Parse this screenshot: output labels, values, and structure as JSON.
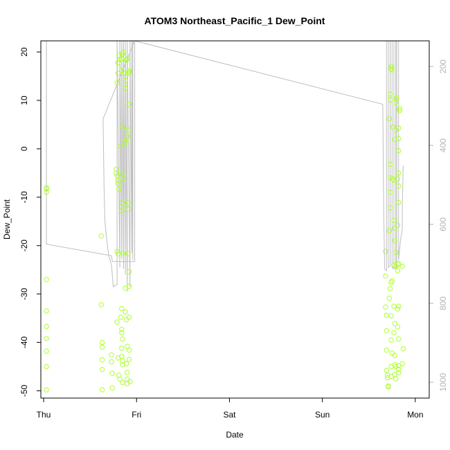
{
  "chart_data": {
    "type": "scatter",
    "title": "ATOM3 Northeast_Pacific_1 Dew_Point",
    "xlabel": "Date",
    "ylabel": "Dew_Point",
    "x_ticks": [
      "Thu",
      "Fri",
      "Sat",
      "Sun",
      "Mon"
    ],
    "xlim": [
      -0.03,
      4.15
    ],
    "ylim": [
      -51.5,
      22.3
    ],
    "y_ticks": [
      -50,
      -40,
      -30,
      -20,
      -10,
      0,
      10,
      20
    ],
    "right_axis": {
      "ticks": [
        200,
        400,
        600,
        800,
        1000
      ],
      "lim": [
        1040,
        135
      ],
      "color": "#b3b3b3"
    },
    "grid": false,
    "legend": "none",
    "colors": {
      "points": "#adff2f",
      "line": "#bebebe"
    },
    "series": [
      {
        "marker": "circle",
        "color": "#adff2f",
        "points": [
          [
            0.03,
            -8
          ],
          [
            0.03,
            -8.3
          ],
          [
            0.03,
            -9
          ],
          [
            0.03,
            -27
          ],
          [
            0.03,
            -33.5
          ],
          [
            0.03,
            -36.7
          ],
          [
            0.03,
            -39.2
          ],
          [
            0.03,
            -41.8
          ],
          [
            0.03,
            -45
          ],
          [
            0.03,
            -49.8
          ],
          [
            0.62,
            -18
          ],
          [
            0.62,
            -32.2
          ],
          [
            0.63,
            -40
          ],
          [
            0.63,
            -41
          ],
          [
            0.63,
            -43.6
          ],
          [
            0.63,
            -45.6
          ],
          [
            0.63,
            -49.8
          ],
          [
            0.73,
            -42.6
          ],
          [
            0.73,
            -44
          ],
          [
            0.74,
            -46.4
          ],
          [
            0.74,
            -49.4
          ],
          [
            0.78,
            -4.2
          ],
          [
            0.78,
            -5.1
          ],
          [
            0.79,
            -5.6
          ],
          [
            0.8,
            -6.5
          ],
          [
            0.8,
            -7.2
          ],
          [
            0.81,
            -8.3
          ],
          [
            0.79,
            -21.2
          ],
          [
            0.8,
            -21.7
          ],
          [
            0.79,
            -35.8
          ],
          [
            0.8,
            -43.2
          ],
          [
            0.81,
            -46.8
          ],
          [
            0.82,
            -47.6
          ],
          [
            0.79,
            13.6
          ],
          [
            0.8,
            15.6
          ],
          [
            0.8,
            17.8
          ],
          [
            0.81,
            19.3
          ],
          [
            0.82,
            18.4
          ],
          [
            0.83,
            -34.8
          ],
          [
            0.84,
            -33
          ],
          [
            0.84,
            -37.3
          ],
          [
            0.84,
            -38
          ],
          [
            0.85,
            -39.3
          ],
          [
            0.84,
            -41.2
          ],
          [
            0.84,
            -42.9
          ],
          [
            0.85,
            -43.8
          ],
          [
            0.85,
            -44.6
          ],
          [
            0.85,
            -48.3
          ],
          [
            0.85,
            -5.3
          ],
          [
            0.86,
            -6.2
          ],
          [
            0.84,
            -11.2
          ],
          [
            0.84,
            -12.8
          ],
          [
            0.85,
            -21.6
          ],
          [
            0.83,
            0.6
          ],
          [
            0.85,
            4.5
          ],
          [
            0.86,
            15.6
          ],
          [
            0.84,
            16.2
          ],
          [
            0.84,
            18.6
          ],
          [
            0.85,
            19.6
          ],
          [
            0.86,
            20
          ],
          [
            0.88,
            -11.4
          ],
          [
            0.88,
            -28.8
          ],
          [
            0.88,
            -33.7
          ],
          [
            0.89,
            -35.3
          ],
          [
            0.9,
            -40.8
          ],
          [
            0.89,
            -44.4
          ],
          [
            0.9,
            -46.2
          ],
          [
            0.9,
            -47.6
          ],
          [
            0.9,
            -48.5
          ],
          [
            0.88,
            12.5
          ],
          [
            0.88,
            14.1
          ],
          [
            0.89,
            18.3
          ],
          [
            0.9,
            18.6
          ],
          [
            0.88,
            1.3
          ],
          [
            0.89,
            1.8
          ],
          [
            0.9,
            2.6
          ],
          [
            0.91,
            -21.7
          ],
          [
            0.92,
            -25.4
          ],
          [
            0.92,
            -28.4
          ],
          [
            0.92,
            -34.8
          ],
          [
            0.92,
            -41.6
          ],
          [
            0.92,
            -43.5
          ],
          [
            0.93,
            -48.1
          ],
          [
            0.91,
            -11.2
          ],
          [
            0.92,
            -12.5
          ],
          [
            0.91,
            3.9
          ],
          [
            0.92,
            9.2
          ],
          [
            0.91,
            15.6
          ],
          [
            0.92,
            16.1
          ],
          [
            0.92,
            15.8
          ],
          [
            3.68,
            -21.2
          ],
          [
            3.68,
            -26.3
          ],
          [
            3.68,
            -32.7
          ],
          [
            3.69,
            -34.4
          ],
          [
            3.69,
            -37.6
          ],
          [
            3.69,
            -41.6
          ],
          [
            3.69,
            -45.8
          ],
          [
            3.7,
            -46.8
          ],
          [
            3.7,
            -47.3
          ],
          [
            3.71,
            -49.2
          ],
          [
            3.71,
            -49
          ],
          [
            3.72,
            -16.9
          ],
          [
            3.73,
            -12.2
          ],
          [
            3.73,
            -9
          ],
          [
            3.73,
            -6
          ],
          [
            3.73,
            -3.2
          ],
          [
            3.72,
            6.2
          ],
          [
            3.73,
            11.3
          ],
          [
            3.73,
            10.1
          ],
          [
            3.74,
            16.5
          ],
          [
            3.74,
            17
          ],
          [
            3.75,
            16.3
          ],
          [
            3.72,
            -30.9
          ],
          [
            3.74,
            -34.5
          ],
          [
            3.74,
            -39.5
          ],
          [
            3.75,
            -42.2
          ],
          [
            3.74,
            -45
          ],
          [
            3.74,
            -47
          ],
          [
            3.73,
            -28.9
          ],
          [
            3.74,
            -27.6
          ],
          [
            3.75,
            -27.3
          ],
          [
            3.76,
            -6.2
          ],
          [
            3.77,
            -6.5
          ],
          [
            3.77,
            -14.8
          ],
          [
            3.77,
            -24
          ],
          [
            3.77,
            -32.5
          ],
          [
            3.78,
            -36.1
          ],
          [
            3.77,
            -38
          ],
          [
            3.78,
            -42.7
          ],
          [
            3.78,
            -44.6
          ],
          [
            3.78,
            -46.6
          ],
          [
            3.79,
            -45
          ],
          [
            3.79,
            -47.5
          ],
          [
            3.76,
            4.5
          ],
          [
            3.78,
            1.9
          ],
          [
            3.79,
            9.6
          ],
          [
            3.79,
            10.3
          ],
          [
            3.8,
            10.5
          ],
          [
            3.79,
            3.9
          ],
          [
            3.78,
            -16.4
          ],
          [
            3.78,
            -19
          ],
          [
            3.79,
            -21.4
          ],
          [
            3.79,
            -24.3
          ],
          [
            3.81,
            -23.9
          ],
          [
            3.81,
            -25.2
          ],
          [
            3.81,
            -33.1
          ],
          [
            3.81,
            -36.8
          ],
          [
            3.82,
            -32.5
          ],
          [
            3.82,
            -39.3
          ],
          [
            3.82,
            -44.8
          ],
          [
            3.82,
            -45.6
          ],
          [
            3.82,
            -46.3
          ],
          [
            3.81,
            -15.8
          ],
          [
            3.82,
            -11.1
          ],
          [
            3.82,
            -7.7
          ],
          [
            3.81,
            -6.2
          ],
          [
            3.82,
            -0.4
          ],
          [
            3.82,
            2.1
          ],
          [
            3.82,
            4.3
          ],
          [
            3.83,
            7.9
          ],
          [
            3.83,
            8.3
          ],
          [
            3.82,
            -23.7
          ],
          [
            3.82,
            -5
          ],
          [
            3.86,
            -24.3
          ],
          [
            3.86,
            -44.4
          ],
          [
            3.87,
            -41.3
          ]
        ]
      }
    ],
    "line_series": {
      "color": "#bebebe",
      "points": [
        [
          0.03,
          22.3
        ],
        [
          0.03,
          -19.7
        ],
        [
          0.73,
          -22.1
        ],
        [
          0.74,
          -23.3
        ],
        [
          0.98,
          -23.3
        ],
        [
          0.98,
          22.3
        ],
        [
          0.96,
          22.3
        ],
        [
          0.96,
          -23
        ],
        [
          0.95,
          22.3
        ],
        [
          0.95,
          -21.5
        ],
        [
          0.93,
          22.3
        ],
        [
          0.93,
          -28.5
        ],
        [
          0.9,
          22.3
        ],
        [
          0.9,
          -29.5
        ],
        [
          0.88,
          22.3
        ],
        [
          0.88,
          -26
        ],
        [
          0.86,
          22.3
        ],
        [
          0.86,
          -24.8
        ],
        [
          0.84,
          22.3
        ],
        [
          0.84,
          -22.8
        ],
        [
          0.82,
          22.3
        ],
        [
          0.82,
          -24.5
        ],
        [
          0.79,
          22.3
        ],
        [
          0.79,
          -28
        ],
        [
          0.75,
          -28.5
        ],
        [
          0.73,
          -24
        ],
        [
          0.7,
          -22
        ],
        [
          0.68,
          -19
        ],
        [
          0.66,
          -15
        ],
        [
          0.65,
          -8
        ],
        [
          0.64,
          6.2
        ],
        [
          0.98,
          22.3
        ],
        [
          3.65,
          9.2
        ],
        [
          3.66,
          -12.2
        ],
        [
          3.67,
          -24.8
        ],
        [
          3.69,
          -25.2
        ],
        [
          3.69,
          22.3
        ],
        [
          3.71,
          22.3
        ],
        [
          3.71,
          -24.5
        ],
        [
          3.73,
          -24.2
        ],
        [
          3.73,
          22.3
        ],
        [
          3.75,
          22.3
        ],
        [
          3.75,
          -24.5
        ],
        [
          3.77,
          -24.8
        ],
        [
          3.77,
          22.3
        ],
        [
          3.79,
          22.3
        ],
        [
          3.79,
          -25
        ],
        [
          3.8,
          -24.7
        ],
        [
          3.8,
          22.3
        ],
        [
          3.82,
          22.3
        ],
        [
          3.82,
          -23
        ],
        [
          3.84,
          -19
        ],
        [
          3.86,
          -16.5
        ],
        [
          3.86,
          -11.5
        ],
        [
          3.87,
          -3.5
        ]
      ]
    }
  }
}
